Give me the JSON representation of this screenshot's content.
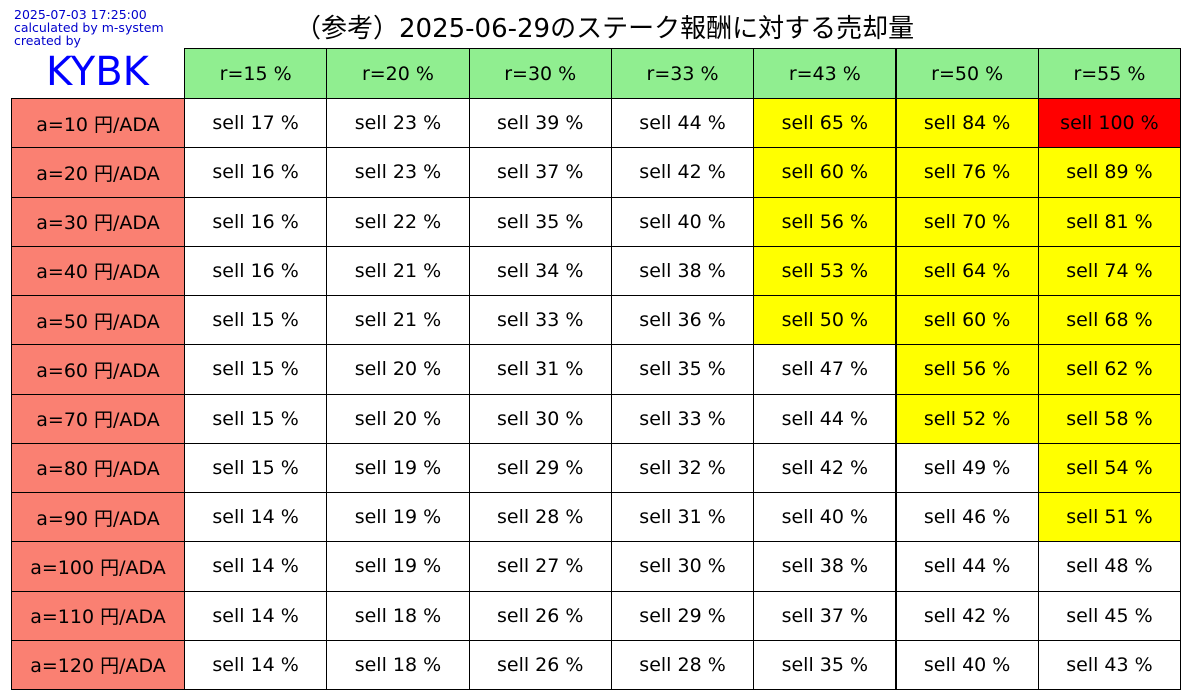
{
  "header": {
    "timestamp": "2025-07-03 17:25:00",
    "calculated_by": "calculated by m-system",
    "created_by": "created by",
    "brand": "KYBK",
    "title": "（参考）2025-06-29のステーク報酬に対する売却量"
  },
  "colors": {
    "column_header": "#90ee90",
    "row_header": "#fa8072",
    "default": "#ffffff",
    "highlight_50_99": "#ffff00",
    "highlight_100": "#ff0000",
    "meta_text": "#0000cc",
    "brand_text": "#0000ff"
  },
  "chart_data": {
    "type": "table",
    "title": "（参考）2025-06-29のステーク報酬に対する売却量",
    "columns": [
      "r=15 %",
      "r=20 %",
      "r=30 %",
      "r=33 %",
      "r=43 %",
      "r=50 %",
      "r=55 %"
    ],
    "rows": [
      "a=10 円/ADA",
      "a=20 円/ADA",
      "a=30 円/ADA",
      "a=40 円/ADA",
      "a=50 円/ADA",
      "a=60 円/ADA",
      "a=70 円/ADA",
      "a=80 円/ADA",
      "a=90 円/ADA",
      "a=100 円/ADA",
      "a=110 円/ADA",
      "a=120 円/ADA"
    ],
    "cell_prefix": "sell",
    "cell_unit": "%",
    "values": [
      [
        17,
        23,
        39,
        44,
        65,
        84,
        100
      ],
      [
        16,
        23,
        37,
        42,
        60,
        76,
        89
      ],
      [
        16,
        22,
        35,
        40,
        56,
        70,
        81
      ],
      [
        16,
        21,
        34,
        38,
        53,
        64,
        74
      ],
      [
        15,
        21,
        33,
        36,
        50,
        60,
        68
      ],
      [
        15,
        20,
        31,
        35,
        47,
        56,
        62
      ],
      [
        15,
        20,
        30,
        33,
        44,
        52,
        58
      ],
      [
        15,
        19,
        29,
        32,
        42,
        49,
        54
      ],
      [
        14,
        19,
        28,
        31,
        40,
        46,
        51
      ],
      [
        14,
        19,
        27,
        30,
        38,
        44,
        48
      ],
      [
        14,
        18,
        26,
        29,
        37,
        42,
        45
      ],
      [
        14,
        18,
        26,
        28,
        35,
        40,
        43
      ]
    ]
  }
}
